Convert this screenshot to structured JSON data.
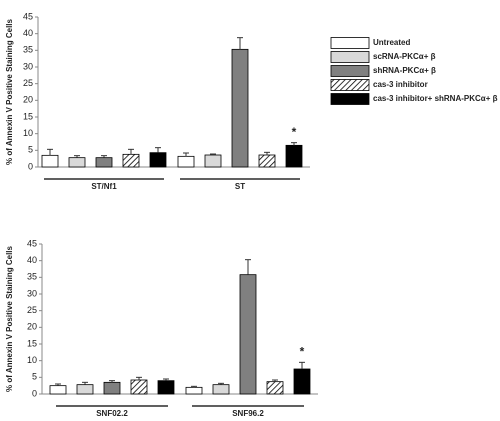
{
  "chart_data": [
    {
      "type": "bar",
      "y_label": "% of Annexin V Positive Staining Cells",
      "categories": [
        "ST/Nf1",
        "ST"
      ],
      "ylim": [
        0,
        45
      ],
      "yticks": [
        0,
        5,
        10,
        15,
        20,
        25,
        30,
        35,
        40,
        45
      ],
      "legend": "right",
      "series": [
        {
          "name": "Untreated",
          "color": "#ffffff",
          "values": [
            3.5,
            3.2
          ],
          "errors": [
            1.8,
            1.0
          ]
        },
        {
          "name": "scRNA-PKCα+ β",
          "color": "#d9d9d9",
          "values": [
            2.8,
            3.6
          ],
          "errors": [
            0.6,
            0.3
          ]
        },
        {
          "name": "shRNA-PKCα+ β",
          "color": "#808080",
          "values": [
            2.8,
            35.3
          ],
          "errors": [
            0.6,
            3.5
          ]
        },
        {
          "name": "cas-3 inhibitor",
          "color": "#ffffff",
          "pattern": "hatch",
          "values": [
            3.8,
            3.6
          ],
          "errors": [
            1.5,
            0.8
          ]
        },
        {
          "name": "cas-3 inhibitor+ shRNA-PKCα+ β",
          "color": "#000000",
          "values": [
            4.3,
            6.5
          ],
          "errors": [
            1.5,
            0.8
          ]
        }
      ],
      "annotations": [
        "*"
      ]
    },
    {
      "type": "bar",
      "y_label": "% of Annexin V Positive Staining Cells",
      "categories": [
        "SNF02.2",
        "SNF96.2"
      ],
      "ylim": [
        0,
        45
      ],
      "yticks": [
        0,
        5,
        10,
        15,
        20,
        25,
        30,
        35,
        40,
        45
      ],
      "series": [
        {
          "color": "#ffffff",
          "values": [
            2.5,
            2.0
          ],
          "errors": [
            0.5,
            0.3
          ]
        },
        {
          "color": "#d9d9d9",
          "values": [
            2.8,
            2.8
          ],
          "errors": [
            0.7,
            0.4
          ]
        },
        {
          "color": "#808080",
          "values": [
            3.5,
            35.8
          ],
          "errors": [
            0.5,
            4.5
          ]
        },
        {
          "color": "#ffffff",
          "pattern": "hatch",
          "values": [
            4.2,
            3.7
          ],
          "errors": [
            0.8,
            0.5
          ]
        },
        {
          "color": "#000000",
          "values": [
            4.0,
            7.5
          ],
          "errors": [
            0.5,
            2.0
          ]
        }
      ],
      "annotations": [
        "*"
      ]
    }
  ]
}
